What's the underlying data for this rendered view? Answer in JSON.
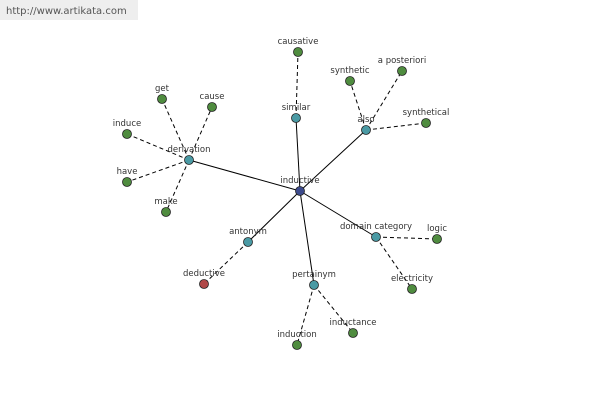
{
  "watermark": "http://www.artikata.com",
  "graph": {
    "center": {
      "label": "inductive"
    },
    "relations": [
      {
        "label": "similar",
        "targets": [
          {
            "label": "causative"
          }
        ]
      },
      {
        "label": "also",
        "targets": [
          {
            "label": "synthetic"
          },
          {
            "label": "a posteriori"
          },
          {
            "label": "synthetical"
          }
        ]
      },
      {
        "label": "derivation",
        "targets": [
          {
            "label": "get"
          },
          {
            "label": "cause"
          },
          {
            "label": "induce"
          },
          {
            "label": "have"
          },
          {
            "label": "make"
          }
        ]
      },
      {
        "label": "antonym",
        "targets": [
          {
            "label": "deductive"
          }
        ]
      },
      {
        "label": "pertainym",
        "targets": [
          {
            "label": "induction"
          },
          {
            "label": "inductance"
          }
        ]
      },
      {
        "label": "domain category",
        "targets": [
          {
            "label": "logic"
          },
          {
            "label": "electricity"
          }
        ]
      }
    ]
  }
}
